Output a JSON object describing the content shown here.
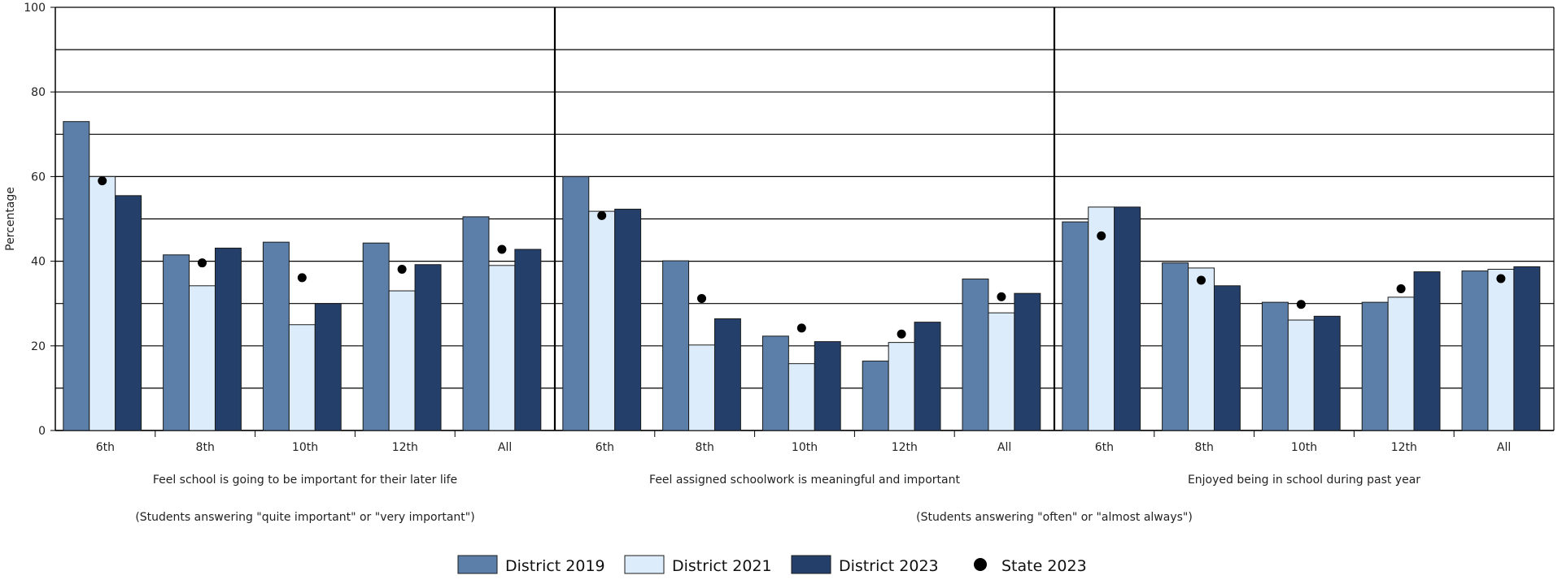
{
  "chart_data": {
    "type": "bar",
    "ylabel": "Percentage",
    "ylim": [
      0,
      100
    ],
    "yticks": [
      "0",
      "20",
      "40",
      "60",
      "80",
      "100"
    ],
    "grid": true,
    "legend_position": "bottom",
    "colors": {
      "District 2019": "#5b7fa8",
      "District 2021": "#dcecfb",
      "District 2023": "#243f6a",
      "State 2023": "#000000"
    },
    "panels": [
      {
        "title": "Feel school is going to be important for their later life",
        "categories": [
          "6th",
          "8th",
          "10th",
          "12th",
          "All"
        ],
        "series": [
          {
            "name": "District 2019",
            "values": [
              73,
              41.5,
              44.5,
              44.3,
              50.5
            ]
          },
          {
            "name": "District 2021",
            "values": [
              60,
              34.2,
              25,
              33,
              39
            ]
          },
          {
            "name": "District 2023",
            "values": [
              55.5,
              43.1,
              30,
              39.2,
              42.8
            ]
          },
          {
            "name": "State 2023",
            "values": [
              59,
              39.6,
              36.1,
              38.1,
              42.8
            ]
          }
        ]
      },
      {
        "title": "Feel assigned schoolwork is meaningful and important",
        "categories": [
          "6th",
          "8th",
          "10th",
          "12th",
          "All"
        ],
        "series": [
          {
            "name": "District 2019",
            "values": [
              60,
              40.1,
              22.3,
              16.4,
              35.8
            ]
          },
          {
            "name": "District 2021",
            "values": [
              51.8,
              20.2,
              15.8,
              20.8,
              27.8
            ]
          },
          {
            "name": "District 2023",
            "values": [
              52.3,
              26.4,
              21,
              25.6,
              32.4
            ]
          },
          {
            "name": "State 2023",
            "values": [
              50.8,
              31.2,
              24.2,
              22.8,
              31.6
            ]
          }
        ]
      },
      {
        "title": "Enjoyed being in school during past year",
        "categories": [
          "6th",
          "8th",
          "10th",
          "12th",
          "All"
        ],
        "series": [
          {
            "name": "District 2019",
            "values": [
              49.3,
              39.6,
              30.3,
              30.3,
              37.7
            ]
          },
          {
            "name": "District 2021",
            "values": [
              52.8,
              38.4,
              26.1,
              31.5,
              38.1
            ]
          },
          {
            "name": "District 2023",
            "values": [
              52.8,
              34.2,
              27,
              37.5,
              38.7
            ]
          },
          {
            "name": "State 2023",
            "values": [
              46,
              35.5,
              29.8,
              33.5,
              35.9
            ]
          }
        ]
      }
    ],
    "subtitles": [
      "(Students answering \"quite important\" or \"very important\")",
      "(Students answering \"often\" or \"almost always\")"
    ],
    "legend": [
      {
        "name": "District 2019",
        "shape": "box"
      },
      {
        "name": "District 2021",
        "shape": "box"
      },
      {
        "name": "District 2023",
        "shape": "box"
      },
      {
        "name": "State 2023",
        "shape": "dot"
      }
    ]
  }
}
